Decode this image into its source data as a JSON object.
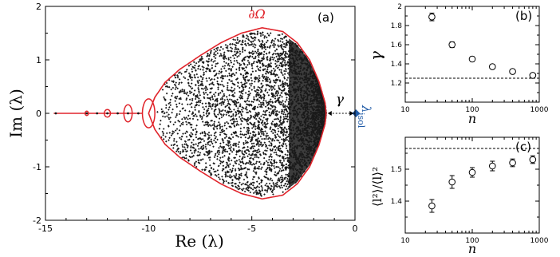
{
  "chart_data": [
    {
      "id": "a",
      "type": "scatter",
      "panel_label": "(a)",
      "xlabel": "Re (λ)",
      "ylabel": "Im (λ)",
      "xlim": [
        -15,
        0
      ],
      "ylim": [
        -2,
        2
      ],
      "xticks": [
        -15,
        -10,
        -5,
        0
      ],
      "yticks": [
        -2,
        -1,
        0,
        1,
        2
      ],
      "yticklabels": [
        "-2",
        "-1",
        "0",
        "1",
        "2"
      ],
      "boundary_label": "∂Ω",
      "gap_label": "γ",
      "isolated_label": "λ",
      "isolated_subscript": "isol",
      "isolated_point": {
        "x": 0.05,
        "y": 0
      },
      "bulk_edge_x": -1.4,
      "axis_line_points": [
        -14.5,
        -13,
        -12.5,
        -12.0,
        -11.5,
        -11.0,
        -10.5
      ],
      "loops": [
        {
          "cx": -13,
          "rx": 0.08,
          "ry": 0.04
        },
        {
          "cx": -12,
          "rx": 0.15,
          "ry": 0.07
        },
        {
          "cx": -11,
          "rx": 0.2,
          "ry": 0.16
        },
        {
          "cx": -10,
          "rx": 0.3,
          "ry": 0.27
        }
      ],
      "boundary_outline": [
        [
          -9.7,
          0.3
        ],
        [
          -9.2,
          0.58
        ],
        [
          -8.5,
          0.82
        ],
        [
          -7.5,
          1.08
        ],
        [
          -6.5,
          1.32
        ],
        [
          -5.5,
          1.5
        ],
        [
          -4.5,
          1.6
        ],
        [
          -3.5,
          1.53
        ],
        [
          -2.8,
          1.32
        ],
        [
          -2.2,
          1.0
        ],
        [
          -1.75,
          0.6
        ],
        [
          -1.45,
          0.2
        ],
        [
          -1.4,
          0
        ]
      ],
      "colors": {
        "boundary": "#e0242b",
        "isolated": "#1f5aa6",
        "points": "#1a1a1a"
      }
    },
    {
      "id": "b",
      "type": "scatter",
      "panel_label": "(b)",
      "xlabel": "n",
      "ylabel": "γ",
      "xscale": "log",
      "xlim": [
        10,
        1000
      ],
      "ylim": [
        1.0,
        2.0
      ],
      "xticks": [
        10,
        100,
        1000
      ],
      "xticklabels": [
        "10",
        "100",
        "1000"
      ],
      "yticks": [
        1.2,
        1.4,
        1.6,
        1.8,
        2.0
      ],
      "yticklabels": [
        "1.2",
        "1.4",
        "1.6",
        "1.8",
        "2"
      ],
      "x": [
        25,
        50,
        100,
        200,
        400,
        800
      ],
      "y": [
        1.89,
        1.6,
        1.45,
        1.37,
        1.32,
        1.28
      ],
      "yerr": [
        0.04,
        0.03,
        0.025,
        0.02,
        0.02,
        0.02
      ],
      "reference_line": 1.25
    },
    {
      "id": "c",
      "type": "scatter",
      "panel_label": "(c)",
      "xlabel": "n",
      "ylabel": "⟨l²⟩/⟨l⟩²",
      "xscale": "log",
      "xlim": [
        10,
        1000
      ],
      "ylim": [
        1.3,
        1.6
      ],
      "xticks": [
        10,
        100,
        1000
      ],
      "xticklabels": [
        "10",
        "100",
        "1000"
      ],
      "yticks": [
        1.4,
        1.5
      ],
      "yticklabels": [
        "1.4",
        "1.5"
      ],
      "x": [
        25,
        50,
        100,
        200,
        400,
        800
      ],
      "y": [
        1.385,
        1.46,
        1.49,
        1.51,
        1.52,
        1.53
      ],
      "yerr": [
        0.02,
        0.02,
        0.015,
        0.015,
        0.012,
        0.012
      ],
      "reference_line": 1.565
    }
  ]
}
